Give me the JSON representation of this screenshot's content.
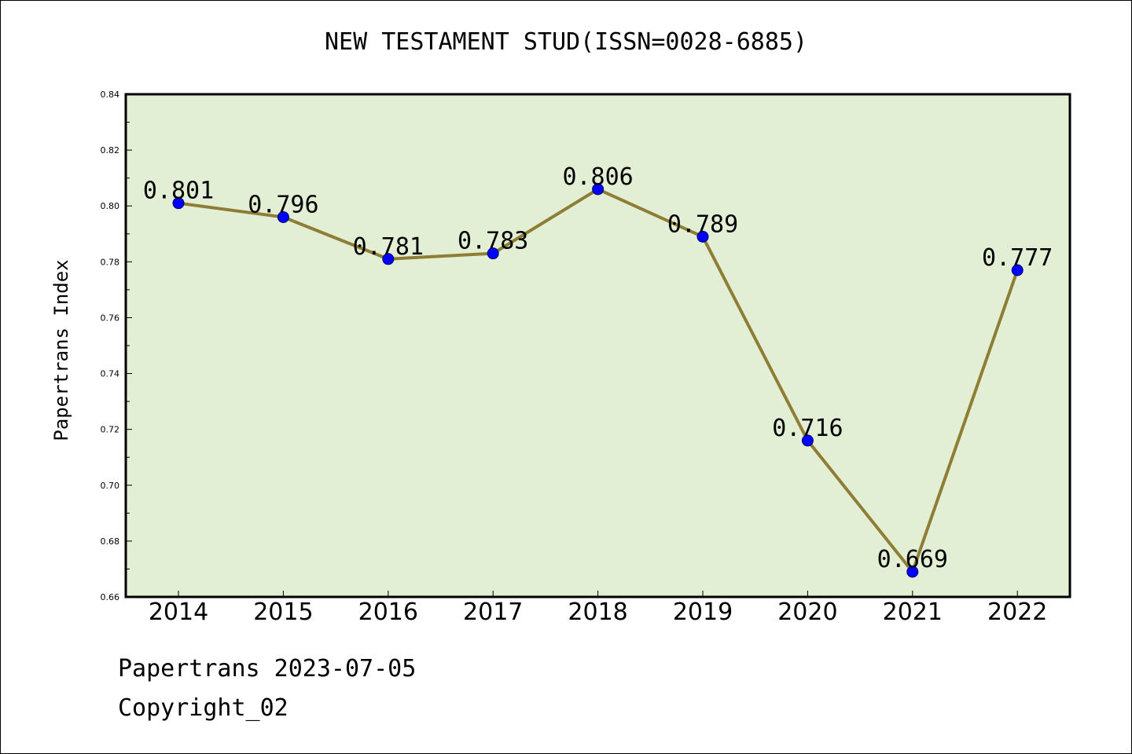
{
  "chart_data": {
    "type": "line",
    "title": "NEW TESTAMENT STUD(ISSN=0028-6885)",
    "xlabel": "",
    "ylabel": "Papertrans Index",
    "categories": [
      "2014",
      "2015",
      "2016",
      "2017",
      "2018",
      "2019",
      "2020",
      "2021",
      "2022"
    ],
    "series": [
      {
        "values": [
          0.801,
          0.796,
          0.781,
          0.783,
          0.806,
          0.789,
          0.716,
          0.669,
          0.777
        ],
        "data_labels": [
          "0.801",
          "0.796",
          "0.781",
          "0.783",
          "0.806",
          "0.789",
          "0.716",
          "0.669",
          "0.777"
        ]
      }
    ],
    "ylim": [
      0.66,
      0.84
    ],
    "yticks": [
      "0.66",
      "0.68",
      "0.70",
      "0.72",
      "0.74",
      "0.76",
      "0.78",
      "0.80",
      "0.82",
      "0.84"
    ],
    "grid": false,
    "colors": {
      "plot_background": "#e2efd4",
      "line": "#8e7d34",
      "marker": "#0000ff"
    }
  },
  "footer": {
    "date": "Papertrans 2023-07-05",
    "copyright": "Copyright_02"
  }
}
